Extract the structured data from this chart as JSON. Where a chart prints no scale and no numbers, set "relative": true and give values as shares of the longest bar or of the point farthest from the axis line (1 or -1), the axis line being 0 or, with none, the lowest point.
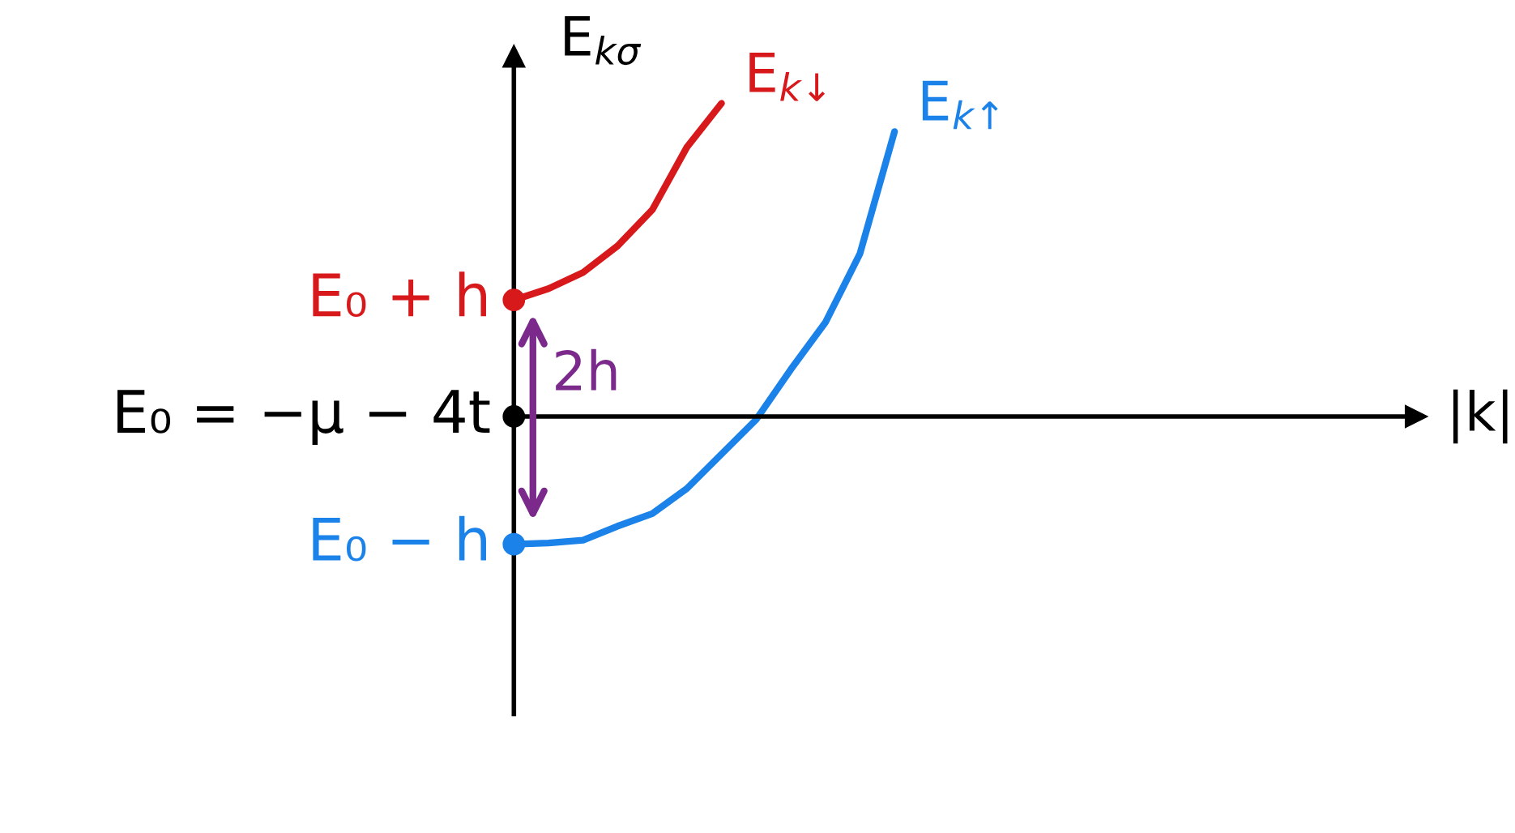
{
  "chart_data": {
    "type": "line",
    "relative": true,
    "ylabel": "E$_{kσ}$",
    "categories": [
      null,
      null,
      null,
      null,
      null,
      null,
      null,
      null,
      null,
      null,
      null,
      null
    ],
    "series": [
      {
        "name": "E$_{k↓}$",
        "color": "#d7191c",
        "values": [
          0.372,
          0.408,
          0.46,
          0.545,
          0.66,
          0.86,
          1.0,
          null,
          null,
          null,
          null,
          null
        ]
      },
      {
        "name": "E$_{k↑}$",
        "color": "#1a82e8",
        "values": [
          -0.408,
          -0.404,
          -0.395,
          -0.35,
          -0.31,
          -0.23,
          -0.12,
          -0.01,
          0.15,
          0.3,
          0.52,
          0.91
        ]
      }
    ],
    "annotations": [
      "E₀ + h",
      "E₀ = −μ − 4t",
      "E₀ − h",
      "2h",
      "|k|"
    ]
  }
}
